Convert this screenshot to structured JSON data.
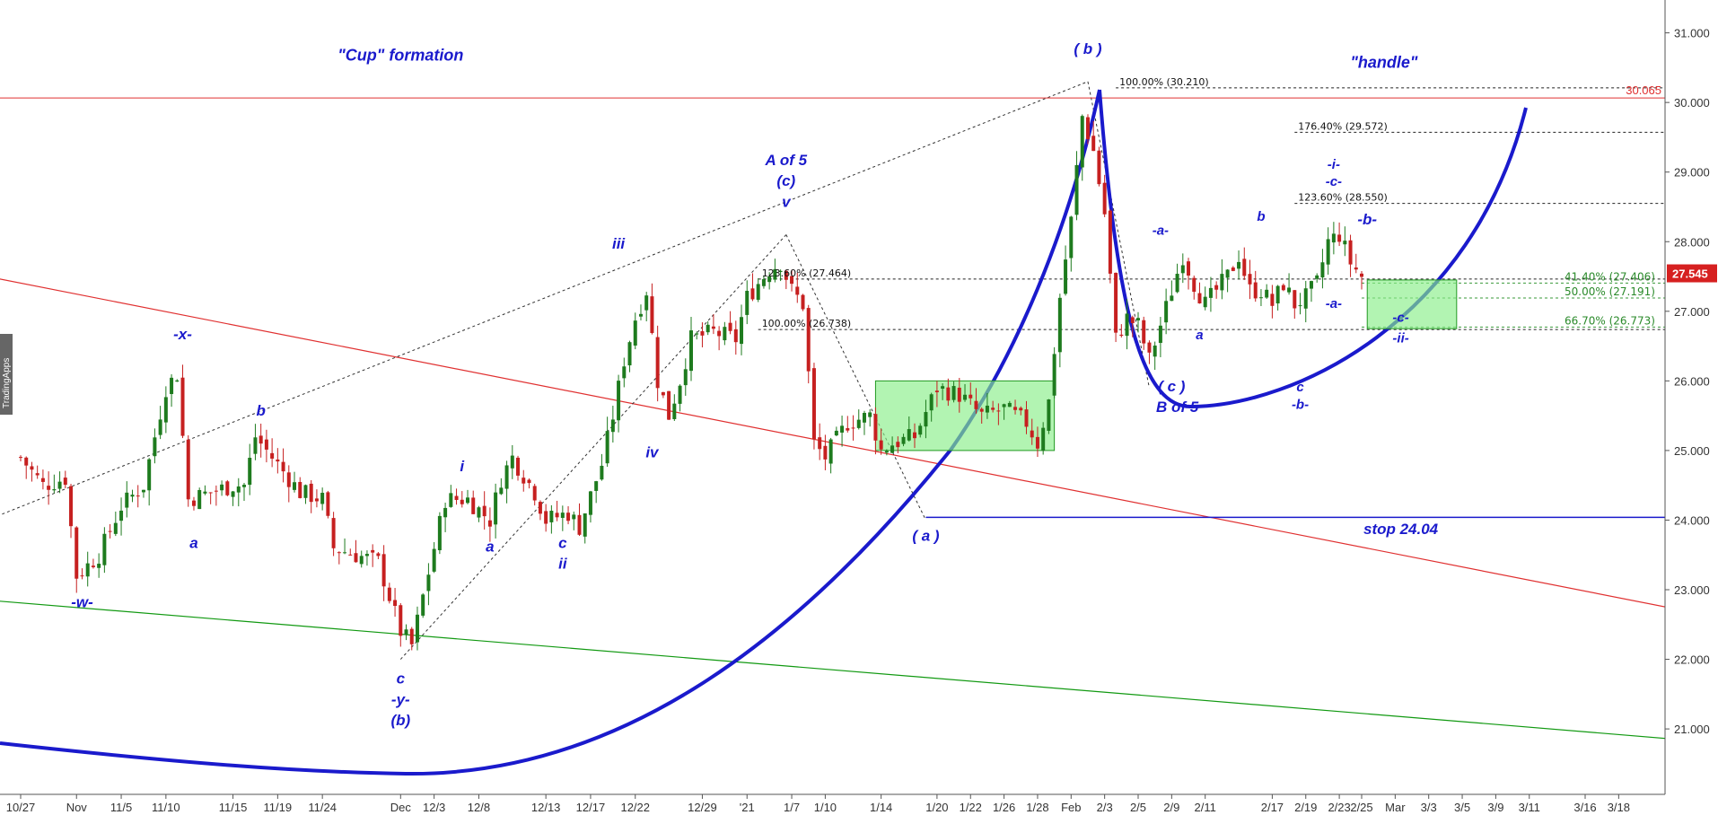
{
  "chart_data": {
    "type": "candlestick",
    "title": "",
    "watermark": "TradingApps",
    "colors": {
      "up": "#1e7b1e",
      "down": "#c62020",
      "cup_arc": "#1a1acc",
      "trend_red": "#e03030",
      "trend_green": "#119911",
      "box_fill": "#88ee88",
      "box_stroke": "#229922",
      "last_price_bg": "#d62020"
    },
    "y_axis": {
      "ylim": [
        20.3,
        31.35
      ],
      "ticks": [
        "21.000",
        "22.000",
        "23.000",
        "24.000",
        "25.000",
        "26.000",
        "27.000",
        "28.000",
        "29.000",
        "30.000",
        "31.000"
      ]
    },
    "x_axis": {
      "ticks": [
        {
          "d": 0,
          "label": "10/27"
        },
        {
          "d": 5,
          "label": "Nov"
        },
        {
          "d": 9,
          "label": "11/5"
        },
        {
          "d": 13,
          "label": "11/10"
        },
        {
          "d": 19,
          "label": "11/15"
        },
        {
          "d": 23,
          "label": "11/19"
        },
        {
          "d": 27,
          "label": "11/24"
        },
        {
          "d": 34,
          "label": "Dec"
        },
        {
          "d": 37,
          "label": "12/3"
        },
        {
          "d": 41,
          "label": "12/8"
        },
        {
          "d": 47,
          "label": "12/13"
        },
        {
          "d": 51,
          "label": "12/17"
        },
        {
          "d": 55,
          "label": "12/22"
        },
        {
          "d": 61,
          "label": "12/29"
        },
        {
          "d": 65,
          "label": "'21"
        },
        {
          "d": 69,
          "label": "1/7"
        },
        {
          "d": 72,
          "label": "1/10"
        },
        {
          "d": 77,
          "label": "1/14"
        },
        {
          "d": 82,
          "label": "1/20"
        },
        {
          "d": 85,
          "label": "1/22"
        },
        {
          "d": 88,
          "label": "1/26"
        },
        {
          "d": 91,
          "label": "1/28"
        },
        {
          "d": 94,
          "label": "Feb"
        },
        {
          "d": 97,
          "label": "2/3"
        },
        {
          "d": 100,
          "label": "2/5"
        },
        {
          "d": 103,
          "label": "2/9"
        },
        {
          "d": 106,
          "label": "2/11"
        },
        {
          "d": 112,
          "label": "2/17"
        },
        {
          "d": 115,
          "label": "2/19"
        },
        {
          "d": 118,
          "label": "2/23"
        },
        {
          "d": 120,
          "label": "2/25"
        },
        {
          "d": 123,
          "label": "Mar"
        },
        {
          "d": 126,
          "label": "3/3"
        },
        {
          "d": 129,
          "label": "3/5"
        },
        {
          "d": 132,
          "label": "3/9"
        },
        {
          "d": 135,
          "label": "3/11"
        },
        {
          "d": 140,
          "label": "3/16"
        },
        {
          "d": 143,
          "label": "3/18"
        }
      ]
    },
    "close_path": [
      [
        0,
        24.9
      ],
      [
        2,
        24.5
      ],
      [
        4,
        24.6
      ],
      [
        5,
        23.2
      ],
      [
        7,
        23.5
      ],
      [
        9,
        24.2
      ],
      [
        11,
        24.5
      ],
      [
        13,
        25.9
      ],
      [
        14,
        26.1
      ],
      [
        15,
        24.3
      ],
      [
        17,
        24.4
      ],
      [
        19,
        24.5
      ],
      [
        20,
        24.5
      ],
      [
        21,
        25.2
      ],
      [
        23,
        24.8
      ],
      [
        25,
        24.4
      ],
      [
        27,
        24.3
      ],
      [
        28,
        23.6
      ],
      [
        30,
        23.5
      ],
      [
        32,
        23.4
      ],
      [
        34,
        22.4
      ],
      [
        35,
        22.2
      ],
      [
        36,
        22.9
      ],
      [
        38,
        24.3
      ],
      [
        40,
        24.3
      ],
      [
        42,
        24.0
      ],
      [
        43,
        24.6
      ],
      [
        44,
        24.9
      ],
      [
        46,
        24.4
      ],
      [
        47,
        24.0
      ],
      [
        49,
        24.1
      ],
      [
        50,
        23.9
      ],
      [
        52,
        24.8
      ],
      [
        53,
        25.5
      ],
      [
        54,
        26.3
      ],
      [
        55,
        26.9
      ],
      [
        56,
        27.3
      ],
      [
        57,
        26.0
      ],
      [
        58,
        25.5
      ],
      [
        59,
        26.0
      ],
      [
        60,
        26.6
      ],
      [
        62,
        26.7
      ],
      [
        64,
        26.6
      ],
      [
        65,
        27.2
      ],
      [
        67,
        27.6
      ],
      [
        68,
        27.7
      ],
      [
        69,
        27.3
      ],
      [
        70,
        27.1
      ],
      [
        71,
        25.1
      ],
      [
        72,
        24.9
      ],
      [
        74,
        25.4
      ],
      [
        76,
        25.5
      ],
      [
        77,
        25.0
      ],
      [
        78,
        25.1
      ],
      [
        80,
        25.2
      ],
      [
        82,
        25.9
      ],
      [
        84,
        25.8
      ],
      [
        86,
        25.5
      ],
      [
        88,
        25.6
      ],
      [
        90,
        25.4
      ],
      [
        91,
        25.1
      ],
      [
        92,
        25.7
      ],
      [
        93,
        27.2
      ],
      [
        94,
        28.3
      ],
      [
        95,
        29.8
      ],
      [
        96,
        29.3
      ],
      [
        97,
        28.4
      ],
      [
        98,
        26.6
      ],
      [
        99,
        26.9
      ],
      [
        100,
        26.8
      ],
      [
        101,
        26.3
      ],
      [
        102,
        26.8
      ],
      [
        103,
        27.3
      ],
      [
        104,
        27.8
      ],
      [
        105,
        27.4
      ],
      [
        106,
        27.1
      ],
      [
        107,
        27.3
      ],
      [
        108,
        27.5
      ],
      [
        109,
        27.8
      ],
      [
        110,
        27.3
      ],
      [
        111,
        27.3
      ],
      [
        112,
        27.1
      ],
      [
        113,
        27.4
      ],
      [
        114,
        27.1
      ],
      [
        115,
        27.2
      ],
      [
        116,
        27.4
      ],
      [
        117,
        28.0
      ],
      [
        118,
        28.1
      ],
      [
        119,
        27.7
      ],
      [
        120,
        27.5
      ]
    ],
    "last_price": "27.545",
    "horizontal_lines": [
      {
        "label": "30.065",
        "value": 30.065,
        "style": "red"
      },
      {
        "label": "stop 24.04",
        "value": 24.04,
        "style": "blue"
      }
    ],
    "fib_levels": [
      {
        "label": "100.00% (30.210)",
        "value": 30.21,
        "from": 98,
        "to": 152
      },
      {
        "label": "176.40% (29.572)",
        "value": 29.572,
        "from": 114,
        "to": 152
      },
      {
        "label": "123.60% (28.550)",
        "value": 28.55,
        "from": 114,
        "to": 152
      },
      {
        "label": "123.60% (27.464)",
        "value": 27.464,
        "from": 66,
        "to": 152
      },
      {
        "label": "100.00% (26.738)",
        "value": 26.738,
        "from": 66,
        "to": 152
      },
      {
        "label": "41.40% (27.406)",
        "value": 27.406,
        "from": 120,
        "to": 152,
        "green": true
      },
      {
        "label": "50.00% (27.191)",
        "value": 27.191,
        "from": 120,
        "to": 152,
        "green": true
      },
      {
        "label": "66.70% (26.773)",
        "value": 26.773,
        "from": 120,
        "to": 152,
        "green": true
      }
    ],
    "boxes": [
      {
        "x0": 76.5,
        "x1": 92.5,
        "y0": 25.0,
        "y1": 26.0
      },
      {
        "x0": 120.5,
        "x1": 128.5,
        "y0": 26.75,
        "y1": 27.45
      }
    ],
    "annotations": [
      {
        "text": "\"Cup\" formation",
        "d": 34,
        "y": 30.6,
        "cls": "title"
      },
      {
        "text": "\"handle\"",
        "d": 122,
        "y": 30.5,
        "cls": "title"
      },
      {
        "text": "( b )",
        "d": 95.5,
        "y": 30.7,
        "cls": "wave"
      },
      {
        "text": "A of 5",
        "d": 68.5,
        "y": 29.1,
        "cls": "wave"
      },
      {
        "text": "(c)",
        "d": 68.5,
        "y": 28.8,
        "cls": "wave"
      },
      {
        "text": "v",
        "d": 68.5,
        "y": 28.5,
        "cls": "wave"
      },
      {
        "text": "iii",
        "d": 53.5,
        "y": 27.9,
        "cls": "wave"
      },
      {
        "text": "iv",
        "d": 56.5,
        "y": 24.9,
        "cls": "wave"
      },
      {
        "text": "-x-",
        "d": 14.5,
        "y": 26.6,
        "cls": "wave"
      },
      {
        "text": "b",
        "d": 21.5,
        "y": 25.5,
        "cls": "wave"
      },
      {
        "text": "a",
        "d": 15.5,
        "y": 23.6,
        "cls": "wave"
      },
      {
        "text": "-w-",
        "d": 5.5,
        "y": 22.75,
        "cls": "wave"
      },
      {
        "text": "c",
        "d": 34,
        "y": 21.65,
        "cls": "wave"
      },
      {
        "text": "-y-",
        "d": 34,
        "y": 21.35,
        "cls": "wave"
      },
      {
        "text": "(b)",
        "d": 34,
        "y": 21.05,
        "cls": "wave"
      },
      {
        "text": "i",
        "d": 39.5,
        "y": 24.7,
        "cls": "wave"
      },
      {
        "text": "a",
        "d": 42,
        "y": 23.55,
        "cls": "wave"
      },
      {
        "text": "c",
        "d": 48.5,
        "y": 23.6,
        "cls": "wave"
      },
      {
        "text": "ii",
        "d": 48.5,
        "y": 23.3,
        "cls": "wave"
      },
      {
        "text": "( a )",
        "d": 81,
        "y": 23.7,
        "cls": "wave"
      },
      {
        "text": "( c )",
        "d": 103,
        "y": 25.85,
        "cls": "wave"
      },
      {
        "text": "B of 5",
        "d": 103.5,
        "y": 25.55,
        "cls": "wave"
      },
      {
        "text": "-a-",
        "d": 102,
        "y": 28.1,
        "cls": "wave-sm"
      },
      {
        "text": "a",
        "d": 105.5,
        "y": 26.6,
        "cls": "wave-sm"
      },
      {
        "text": "b",
        "d": 111,
        "y": 28.3,
        "cls": "wave-sm"
      },
      {
        "text": "c",
        "d": 114.5,
        "y": 25.85,
        "cls": "wave-sm"
      },
      {
        "text": "-b-",
        "d": 114.5,
        "y": 25.6,
        "cls": "wave-sm"
      },
      {
        "text": "-i-",
        "d": 117.5,
        "y": 29.05,
        "cls": "wave-sm"
      },
      {
        "text": "-c-",
        "d": 117.5,
        "y": 28.8,
        "cls": "wave-sm"
      },
      {
        "text": "-b-",
        "d": 120.5,
        "y": 28.25,
        "cls": "wave"
      },
      {
        "text": "-a-",
        "d": 117.5,
        "y": 27.05,
        "cls": "wave-sm"
      },
      {
        "text": "-c-",
        "d": 123.5,
        "y": 26.85,
        "cls": "wave-sm"
      },
      {
        "text": "-ii-",
        "d": 123.5,
        "y": 26.55,
        "cls": "wave-sm"
      },
      {
        "text": "stop 24.04",
        "d": 123.5,
        "y": 23.8,
        "cls": "wave"
      }
    ],
    "trendlines": [
      {
        "points": [
          [
            -3,
            27.5
          ],
          [
            152,
            22.6
          ]
        ],
        "style": "red"
      },
      {
        "points": [
          [
            -3,
            22.85
          ],
          [
            152,
            20.8
          ]
        ],
        "style": "green"
      },
      {
        "points": [
          [
            -3,
            24.0
          ],
          [
            95.5,
            30.3
          ]
        ],
        "style": "dotted"
      },
      {
        "points": [
          [
            34,
            22.0
          ],
          [
            68.5,
            28.1
          ]
        ],
        "style": "dotted"
      },
      {
        "points": [
          [
            68.5,
            28.1
          ],
          [
            81,
            24.0
          ]
        ],
        "style": "dotted"
      },
      {
        "points": [
          [
            95.5,
            30.3
          ],
          [
            101,
            25.9
          ]
        ],
        "style": "dotted"
      }
    ]
  }
}
